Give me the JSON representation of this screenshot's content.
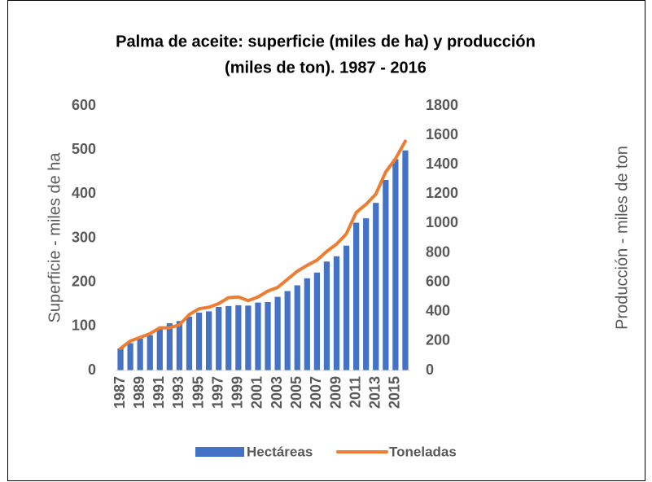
{
  "chart_data": {
    "type": "bar_line",
    "title": [
      "Palma de aceite: superficie (miles de ha) y producción",
      "(miles de ton). 1987 - 2016"
    ],
    "y_label": "Superficie - miles de ha",
    "y2_label": "Producción - miles de ton",
    "categories": [
      "1987",
      null,
      "1989",
      null,
      "1991",
      null,
      "1993",
      null,
      "1995",
      null,
      "1997",
      null,
      "1999",
      null,
      "2001",
      null,
      "2003",
      null,
      "2005",
      null,
      "2007",
      null,
      "2009",
      null,
      "2011",
      null,
      "2013",
      null,
      "2015",
      null
    ],
    "series": [
      {
        "name": "Hectáreas",
        "type": "bar",
        "color": "#4472c4",
        "values": [
          50,
          62,
          72,
          80,
          95,
          107,
          112,
          122,
          131,
          134,
          144,
          146,
          148,
          147,
          154,
          155,
          167,
          180,
          193,
          209,
          222,
          247,
          259,
          283,
          335,
          345,
          380,
          432,
          479,
          499
        ]
      },
      {
        "name": "Toneladas",
        "type": "line",
        "axis": "y2",
        "color": "#ed7d31",
        "values": [
          150,
          200,
          225,
          250,
          290,
          290,
          310,
          380,
          420,
          430,
          455,
          495,
          500,
          475,
          500,
          540,
          565,
          620,
          675,
          715,
          750,
          810,
          860,
          930,
          1075,
          1130,
          1200,
          1350,
          1440,
          1560
        ]
      }
    ],
    "ylim": [
      0,
      600
    ],
    "yticks": [
      0,
      100,
      200,
      300,
      400,
      500,
      600
    ],
    "y2lim": [
      0,
      1800
    ],
    "y2ticks": [
      0,
      200,
      400,
      600,
      800,
      1000,
      1200,
      1400,
      1600,
      1800
    ],
    "grid": false,
    "legend": "bottom"
  }
}
